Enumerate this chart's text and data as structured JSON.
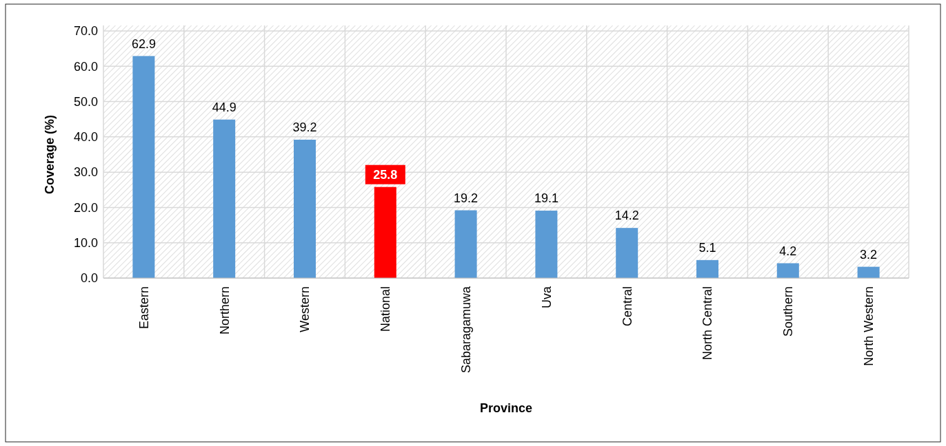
{
  "chart_data": {
    "type": "bar",
    "xlabel": "Province",
    "ylabel": "Coverage (%)",
    "categories": [
      "Eastern",
      "Northern",
      "Western",
      "National",
      "Sabaragamuwa",
      "Uva",
      "Central",
      "North Central",
      "Southern",
      "North Western"
    ],
    "values": [
      62.9,
      44.9,
      39.2,
      25.8,
      19.2,
      19.1,
      14.2,
      5.1,
      4.2,
      3.2
    ],
    "colors": [
      "#5b9bd5",
      "#5b9bd5",
      "#5b9bd5",
      "#ff0000",
      "#5b9bd5",
      "#5b9bd5",
      "#5b9bd5",
      "#5b9bd5",
      "#5b9bd5",
      "#5b9bd5"
    ],
    "ylim": [
      0,
      70
    ],
    "yticks": [
      {
        "value": 0,
        "label": "0.0"
      },
      {
        "value": 10,
        "label": "10.0"
      },
      {
        "value": 20,
        "label": "20.0"
      },
      {
        "value": 30,
        "label": "30.0"
      },
      {
        "value": 40,
        "label": "40.0"
      },
      {
        "value": 50,
        "label": "50.0"
      },
      {
        "value": 60,
        "label": "60.0"
      },
      {
        "value": 70,
        "label": "70.0"
      }
    ],
    "grid": true,
    "data_labels": true
  }
}
